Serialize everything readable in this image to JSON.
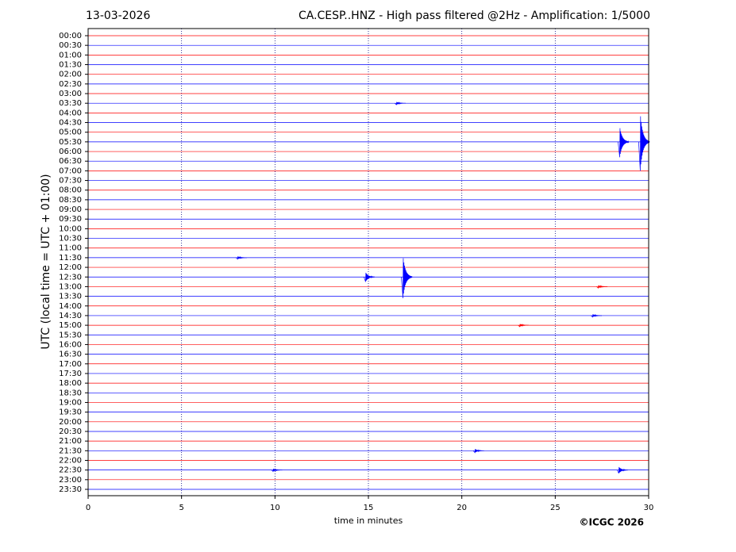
{
  "chart_data": {
    "type": "helicorder",
    "date": "13-03-2026",
    "title": "CA.CESP..HNZ - High pass filtered @2Hz - Amplification: 1/5000",
    "ylabel": "UTC (local time = UTC + 01:00)",
    "xlabel": "time in minutes",
    "copyright": "©ICGC 2026",
    "categories": [
      "00:00",
      "00:30",
      "01:00",
      "01:30",
      "02:00",
      "02:30",
      "03:00",
      "03:30",
      "04:00",
      "04:30",
      "05:00",
      "05:30",
      "06:00",
      "06:30",
      "07:00",
      "07:30",
      "08:00",
      "08:30",
      "09:00",
      "09:30",
      "10:00",
      "10:30",
      "11:00",
      "11:30",
      "12:00",
      "12:30",
      "13:00",
      "13:30",
      "14:00",
      "14:30",
      "15:00",
      "15:30",
      "16:00",
      "16:30",
      "17:00",
      "17:30",
      "18:00",
      "18:30",
      "19:00",
      "19:30",
      "20:00",
      "20:30",
      "21:00",
      "21:30",
      "22:00",
      "22:30",
      "23:00",
      "23:30"
    ],
    "colors": [
      "#ff0000",
      "#0000ff"
    ],
    "xlim": [
      0,
      30
    ],
    "xticks": [
      0,
      5,
      10,
      15,
      20,
      25,
      30
    ],
    "grid": true,
    "events": [
      {
        "row": 7,
        "x": 16.5,
        "amplitude": 0.15
      },
      {
        "row": 11,
        "x": 28.45,
        "amplitude": 1.6
      },
      {
        "row": 11,
        "x": 29.55,
        "amplitude": 3.0
      },
      {
        "row": 23,
        "x": 8.0,
        "amplitude": 0.15
      },
      {
        "row": 25,
        "x": 14.85,
        "amplitude": 0.5
      },
      {
        "row": 25,
        "x": 16.85,
        "amplitude": 2.2
      },
      {
        "row": 26,
        "x": 27.3,
        "amplitude": 0.15
      },
      {
        "row": 29,
        "x": 27.0,
        "amplitude": 0.15
      },
      {
        "row": 30,
        "x": 23.1,
        "amplitude": 0.15
      },
      {
        "row": 43,
        "x": 20.7,
        "amplitude": 0.2
      },
      {
        "row": 45,
        "x": 9.9,
        "amplitude": 0.15
      },
      {
        "row": 45,
        "x": 28.4,
        "amplitude": 0.35
      }
    ]
  }
}
